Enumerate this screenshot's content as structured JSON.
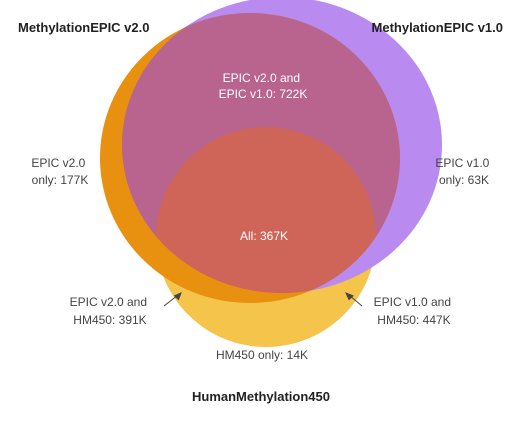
{
  "sets": {
    "epic_v2": {
      "title": "MethylationEPIC v2.0",
      "color": "#e8900f"
    },
    "epic_v1": {
      "title": "MethylationEPIC v1.0",
      "color": "#b98af0"
    },
    "hm450": {
      "title": "HumanMethylation450",
      "color": "#f5c44a"
    }
  },
  "regions": {
    "epic_v2_and_v1": {
      "line1": "EPIC v2.0 and",
      "line2": "EPIC v1.0: 722K"
    },
    "epic_v2_only": {
      "line1": "EPIC v2.0",
      "line2": "only: 177K"
    },
    "epic_v1_only": {
      "line1": "EPIC v1.0",
      "line2": "only: 63K"
    },
    "all": {
      "label": "All: 367K"
    },
    "epic_v2_and_hm450": {
      "line1": "EPIC v2.0 and",
      "line2": "HM450: 391K"
    },
    "epic_v1_and_hm450": {
      "line1": "EPIC v1.0 and",
      "line2": "HM450: 447K"
    },
    "hm450_only": {
      "label": "HM450 only: 14K"
    }
  },
  "overlap_colors": {
    "v2_v1": "#b8648e",
    "all": "#cf6558"
  }
}
